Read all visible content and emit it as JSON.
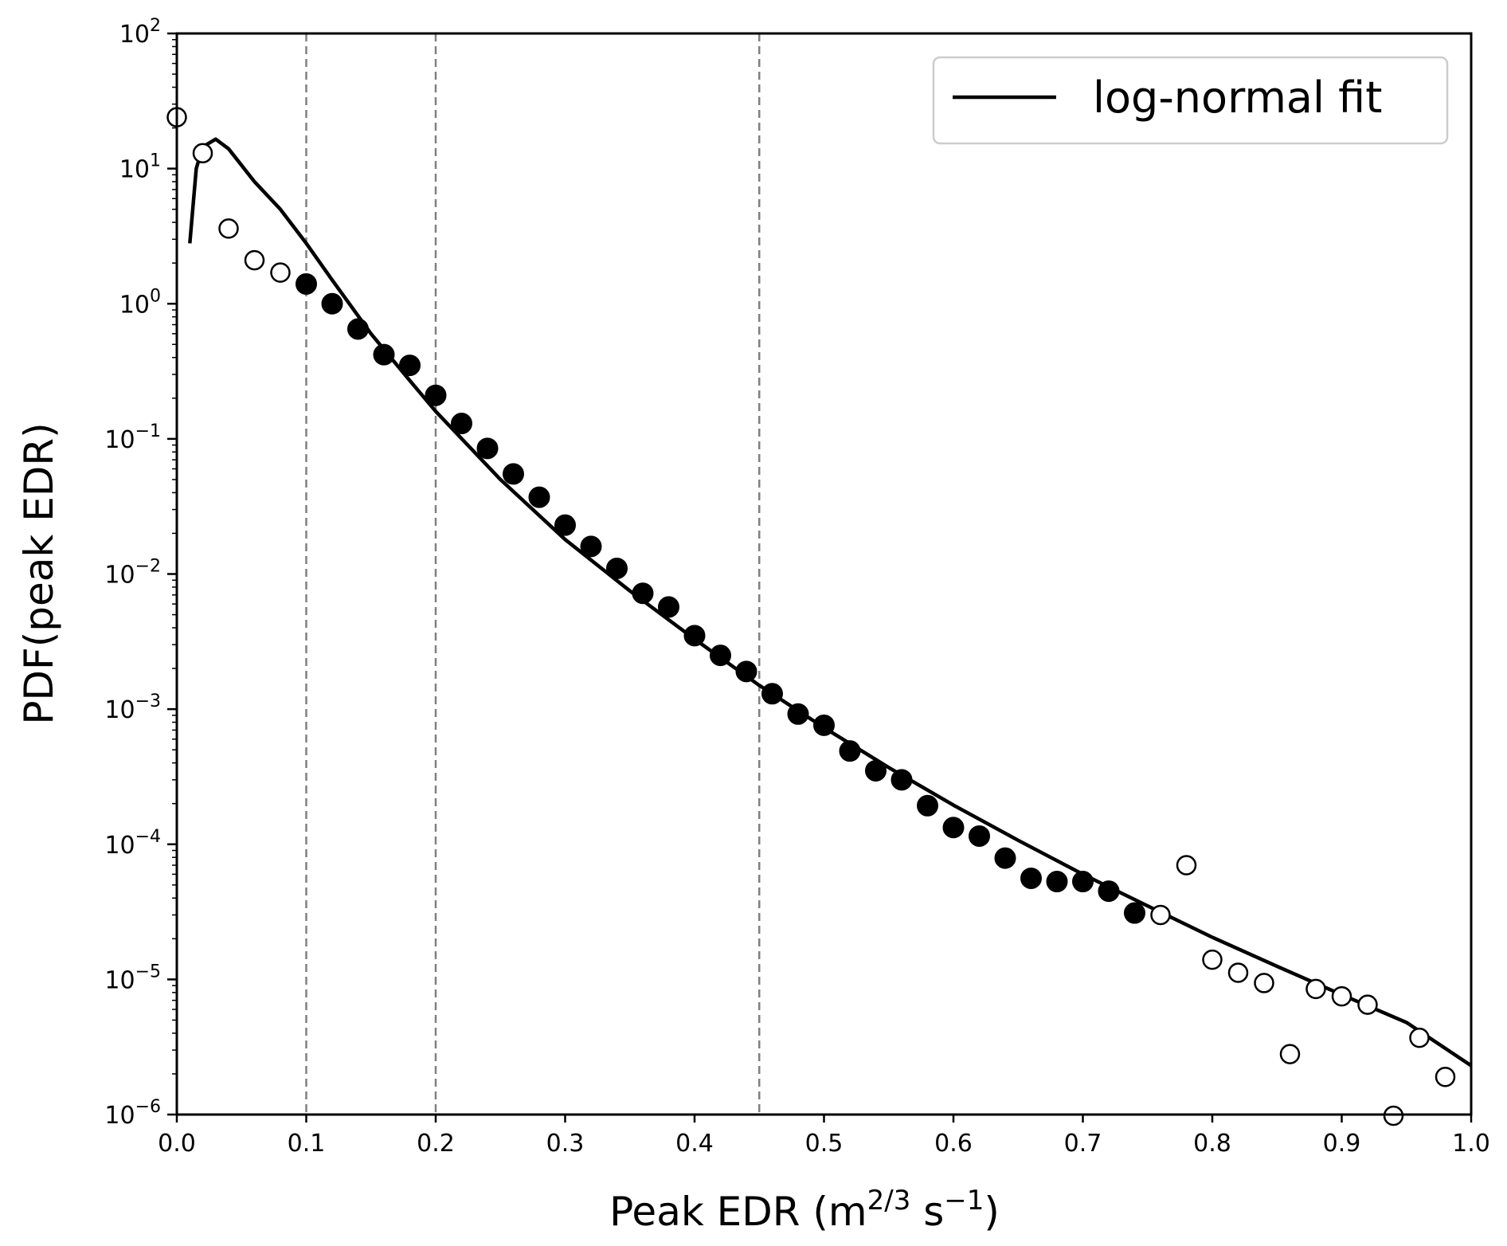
{
  "chart_data": {
    "type": "scatter",
    "xlabel": "Peak EDR (m",
    "xlabel_sup": "2/3",
    "xlabel_mid": " s",
    "xlabel_sup2": "−1",
    "xlabel_end": ")",
    "ylabel": "PDF(peak EDR)",
    "xlim": [
      0.0,
      1.0
    ],
    "ylim": [
      1e-06,
      100
    ],
    "yscale": "log",
    "grid": false,
    "legend_position": "top-right",
    "x_ticks": [
      "0.0",
      "0.1",
      "0.2",
      "0.3",
      "0.4",
      "0.5",
      "0.6",
      "0.7",
      "0.8",
      "0.9",
      "1.0"
    ],
    "y_ticks": [
      {
        "base": "10",
        "exp": "−6",
        "value": 1e-06
      },
      {
        "base": "10",
        "exp": "−5",
        "value": 1e-05
      },
      {
        "base": "10",
        "exp": "−4",
        "value": 0.0001
      },
      {
        "base": "10",
        "exp": "−3",
        "value": 0.001
      },
      {
        "base": "10",
        "exp": "−2",
        "value": 0.01
      },
      {
        "base": "10",
        "exp": "−1",
        "value": 0.1
      },
      {
        "base": "10",
        "exp": "0",
        "value": 1
      },
      {
        "base": "10",
        "exp": "1",
        "value": 10
      },
      {
        "base": "10",
        "exp": "2",
        "value": 100
      }
    ],
    "vlines": [
      0.1,
      0.2,
      0.45
    ],
    "fit": {
      "name": "log-normal fit",
      "x": [
        0.01,
        0.015,
        0.02,
        0.03,
        0.04,
        0.06,
        0.08,
        0.1,
        0.12,
        0.15,
        0.18,
        0.2,
        0.25,
        0.3,
        0.35,
        0.4,
        0.45,
        0.5,
        0.55,
        0.6,
        0.65,
        0.7,
        0.75,
        0.8,
        0.85,
        0.9,
        0.95,
        1.0
      ],
      "y": [
        2.8,
        10,
        14.5,
        16.5,
        14,
        8,
        5,
        2.8,
        1.5,
        0.6,
        0.27,
        0.16,
        0.05,
        0.018,
        0.0075,
        0.0033,
        0.0015,
        0.00073,
        0.00037,
        0.000195,
        0.000107,
        6e-05,
        3.5e-05,
        2.05e-05,
        1.25e-05,
        7.7e-06,
        4.8e-06,
        2.3e-06
      ]
    },
    "open_points": {
      "x": [
        0.0,
        0.02,
        0.04,
        0.06,
        0.08,
        0.76,
        0.78,
        0.8,
        0.82,
        0.84,
        0.86,
        0.88,
        0.9,
        0.92,
        0.94,
        0.96,
        0.98
      ],
      "y": [
        24,
        13,
        3.6,
        2.1,
        1.7,
        3e-05,
        7e-05,
        1.4e-05,
        1.12e-05,
        9.4e-06,
        2.8e-06,
        8.5e-06,
        7.5e-06,
        6.5e-06,
        9.8e-07,
        3.7e-06,
        1.9e-06
      ]
    },
    "filled_points": {
      "x": [
        0.1,
        0.12,
        0.14,
        0.16,
        0.18,
        0.2,
        0.22,
        0.24,
        0.26,
        0.28,
        0.3,
        0.32,
        0.34,
        0.36,
        0.38,
        0.4,
        0.42,
        0.44,
        0.46,
        0.48,
        0.5,
        0.52,
        0.54,
        0.56,
        0.58,
        0.6,
        0.62,
        0.64,
        0.66,
        0.68,
        0.7,
        0.72,
        0.74
      ],
      "y": [
        1.4,
        1.0,
        0.65,
        0.42,
        0.35,
        0.21,
        0.13,
        0.085,
        0.055,
        0.037,
        0.023,
        0.016,
        0.011,
        0.0072,
        0.0057,
        0.0035,
        0.0025,
        0.0019,
        0.0013,
        0.00092,
        0.00076,
        0.00049,
        0.00035,
        0.0003,
        0.000193,
        0.000133,
        0.000115,
        7.9e-05,
        5.6e-05,
        5.3e-05,
        5.3e-05,
        4.5e-05,
        3.1e-05
      ]
    }
  }
}
